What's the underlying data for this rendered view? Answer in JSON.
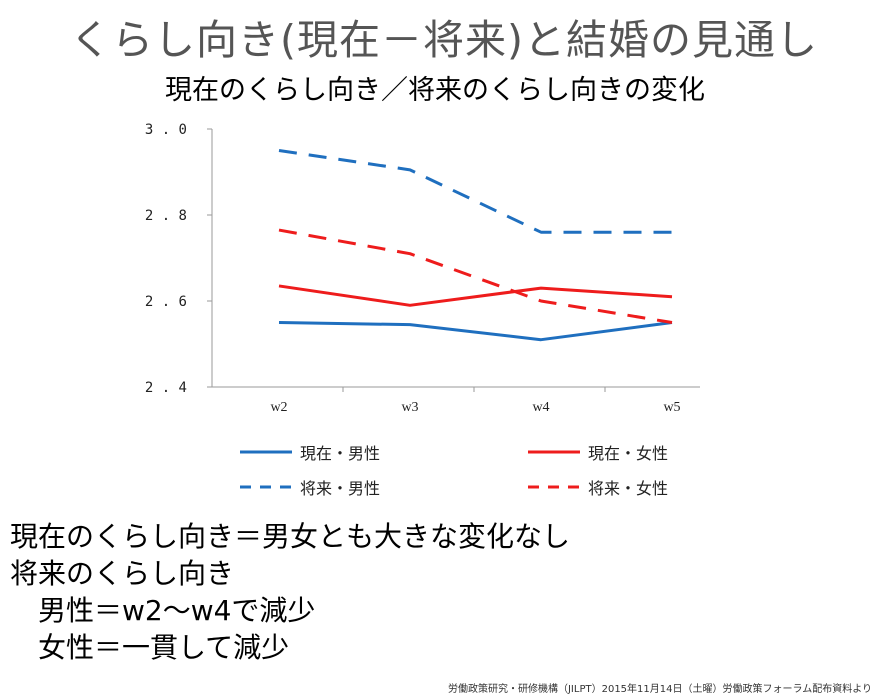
{
  "title": "くらし向き(現在－将来)と結婚の見通し",
  "subtitle": "現在のくらし向き／将来のくらし向きの変化",
  "chart_data": {
    "type": "line",
    "categories": [
      "w2",
      "w3",
      "w4",
      "w5"
    ],
    "ylim": [
      2.4,
      3.0
    ],
    "yticks": [
      "2.4",
      "2.6",
      "2.8",
      "3.0"
    ],
    "grid": false,
    "legend_position": "bottom",
    "series": [
      {
        "name": "現在・男性",
        "values": [
          2.55,
          2.545,
          2.51,
          2.55
        ],
        "color": "#1f6fbf",
        "dash": false
      },
      {
        "name": "現在・女性",
        "values": [
          2.635,
          2.59,
          2.63,
          2.61
        ],
        "color": "#ee1c1c",
        "dash": false
      },
      {
        "name": "将来・男性",
        "values": [
          2.95,
          2.905,
          2.76,
          2.76
        ],
        "color": "#1f6fbf",
        "dash": true
      },
      {
        "name": "将来・女性",
        "values": [
          2.765,
          2.71,
          2.6,
          2.55
        ],
        "color": "#ee1c1c",
        "dash": true
      }
    ]
  },
  "legend": {
    "genzai_dansei": "現在・男性",
    "genzai_josei": "現在・女性",
    "shourai_dansei": "将来・男性",
    "shourai_josei": "将来・女性"
  },
  "notes": {
    "line1": "現在のくらし向き＝男女とも大きな変化なし",
    "line2": "将来のくらし向き",
    "line3": "　男性＝w2～w4で減少",
    "line4": "　女性＝一貫して減少"
  },
  "footer": "労働政策研究・研修機構（JILPT）2015年11月14日（土曜）労働政策フォーラム配布資料より"
}
